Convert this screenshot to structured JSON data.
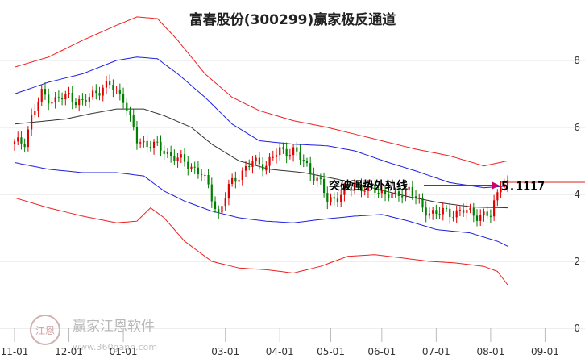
{
  "chart_data": {
    "type": "candlestick",
    "title": "富春股份(300299)赢家极反通道",
    "y_ticks": [
      "8",
      "6",
      "4",
      "2",
      "0"
    ],
    "y_tick_values": [
      8,
      6,
      4,
      2,
      0
    ],
    "ylim": [
      0,
      8.6
    ],
    "x_ticks": [
      "11-01",
      "12-01",
      "01-01",
      "03-01",
      "04-01",
      "05-01",
      "06-01",
      "07-01",
      "08-01",
      "09-01"
    ],
    "x_tick_index": [
      0,
      16,
      32,
      62,
      78,
      93,
      108,
      124,
      140,
      156
    ],
    "n_points": 146,
    "annotation": {
      "text": "突破强势外轨线",
      "price_label": "5.1117",
      "value": 5.1117
    },
    "colors": {
      "up": "#e00000",
      "down": "#008000",
      "ma": "#333333",
      "inner": "#1f1fe0",
      "outer": "#ee2020",
      "arrow": "#cc0066"
    },
    "watermark": {
      "text": "赢家江恩软件",
      "url": "www.360gann.com",
      "seal": "江恩"
    },
    "ma_anchors": [
      [
        0,
        6.1
      ],
      [
        15,
        6.25
      ],
      [
        22,
        6.4
      ],
      [
        30,
        6.55
      ],
      [
        38,
        6.55
      ],
      [
        44,
        6.35
      ],
      [
        52,
        6.0
      ],
      [
        58,
        5.5
      ],
      [
        66,
        5.0
      ],
      [
        75,
        4.75
      ],
      [
        85,
        4.65
      ],
      [
        95,
        4.45
      ],
      [
        105,
        4.2
      ],
      [
        115,
        3.95
      ],
      [
        125,
        3.75
      ],
      [
        135,
        3.62
      ],
      [
        145,
        3.6
      ]
    ],
    "inner_upper_anchors": [
      [
        0,
        7.0
      ],
      [
        10,
        7.35
      ],
      [
        20,
        7.6
      ],
      [
        30,
        8.0
      ],
      [
        36,
        8.1
      ],
      [
        42,
        8.05
      ],
      [
        48,
        7.6
      ],
      [
        56,
        6.9
      ],
      [
        64,
        6.1
      ],
      [
        72,
        5.6
      ],
      [
        82,
        5.5
      ],
      [
        92,
        5.45
      ],
      [
        100,
        5.3
      ],
      [
        110,
        4.95
      ],
      [
        118,
        4.7
      ],
      [
        128,
        4.35
      ],
      [
        138,
        4.2
      ],
      [
        145,
        4.25
      ]
    ],
    "inner_lower_anchors": [
      [
        0,
        4.95
      ],
      [
        10,
        4.75
      ],
      [
        20,
        4.65
      ],
      [
        30,
        4.65
      ],
      [
        38,
        4.55
      ],
      [
        44,
        4.1
      ],
      [
        50,
        3.8
      ],
      [
        58,
        3.5
      ],
      [
        66,
        3.3
      ],
      [
        74,
        3.2
      ],
      [
        82,
        3.15
      ],
      [
        90,
        3.25
      ],
      [
        100,
        3.35
      ],
      [
        108,
        3.4
      ],
      [
        116,
        3.2
      ],
      [
        124,
        2.95
      ],
      [
        134,
        2.85
      ],
      [
        142,
        2.6
      ],
      [
        145,
        2.45
      ]
    ],
    "outer_upper_anchors": [
      [
        0,
        7.8
      ],
      [
        10,
        8.1
      ],
      [
        20,
        8.6
      ],
      [
        30,
        9.05
      ],
      [
        36,
        9.3
      ],
      [
        42,
        9.25
      ],
      [
        48,
        8.6
      ],
      [
        56,
        7.6
      ],
      [
        64,
        6.9
      ],
      [
        72,
        6.5
      ],
      [
        82,
        6.2
      ],
      [
        92,
        6.0
      ],
      [
        102,
        5.75
      ],
      [
        110,
        5.55
      ],
      [
        118,
        5.35
      ],
      [
        128,
        5.15
      ],
      [
        138,
        4.85
      ],
      [
        145,
        5.0
      ]
    ],
    "outer_lower_anchors": [
      [
        0,
        3.9
      ],
      [
        10,
        3.6
      ],
      [
        20,
        3.35
      ],
      [
        30,
        3.15
      ],
      [
        36,
        3.2
      ],
      [
        40,
        3.6
      ],
      [
        44,
        3.3
      ],
      [
        50,
        2.6
      ],
      [
        58,
        2.0
      ],
      [
        66,
        1.8
      ],
      [
        74,
        1.75
      ],
      [
        82,
        1.65
      ],
      [
        90,
        1.85
      ],
      [
        98,
        2.15
      ],
      [
        106,
        2.2
      ],
      [
        114,
        2.1
      ],
      [
        122,
        2.0
      ],
      [
        130,
        1.95
      ],
      [
        138,
        1.85
      ],
      [
        142,
        1.7
      ],
      [
        145,
        1.3
      ]
    ],
    "close_anchors": [
      [
        0,
        5.5
      ],
      [
        3,
        5.6
      ],
      [
        5,
        6.3
      ],
      [
        8,
        7.0
      ],
      [
        12,
        6.8
      ],
      [
        16,
        6.95
      ],
      [
        20,
        6.7
      ],
      [
        24,
        7.1
      ],
      [
        28,
        7.25
      ],
      [
        32,
        6.9
      ],
      [
        34,
        6.2
      ],
      [
        36,
        5.6
      ],
      [
        40,
        5.5
      ],
      [
        44,
        5.3
      ],
      [
        48,
        5.05
      ],
      [
        52,
        4.85
      ],
      [
        55,
        4.6
      ],
      [
        57,
        4.2
      ],
      [
        60,
        3.4
      ],
      [
        63,
        4.2
      ],
      [
        66,
        4.6
      ],
      [
        70,
        4.95
      ],
      [
        74,
        4.9
      ],
      [
        78,
        5.3
      ],
      [
        82,
        5.3
      ],
      [
        86,
        4.85
      ],
      [
        90,
        4.3
      ],
      [
        92,
        3.8
      ],
      [
        96,
        4.0
      ],
      [
        100,
        4.3
      ],
      [
        104,
        4.15
      ],
      [
        108,
        4.1
      ],
      [
        112,
        3.9
      ],
      [
        116,
        4.2
      ],
      [
        120,
        3.55
      ],
      [
        124,
        3.45
      ],
      [
        128,
        3.45
      ],
      [
        132,
        3.5
      ],
      [
        136,
        3.4
      ],
      [
        140,
        3.35
      ],
      [
        143,
        4.4
      ],
      [
        145,
        4.3
      ]
    ]
  }
}
